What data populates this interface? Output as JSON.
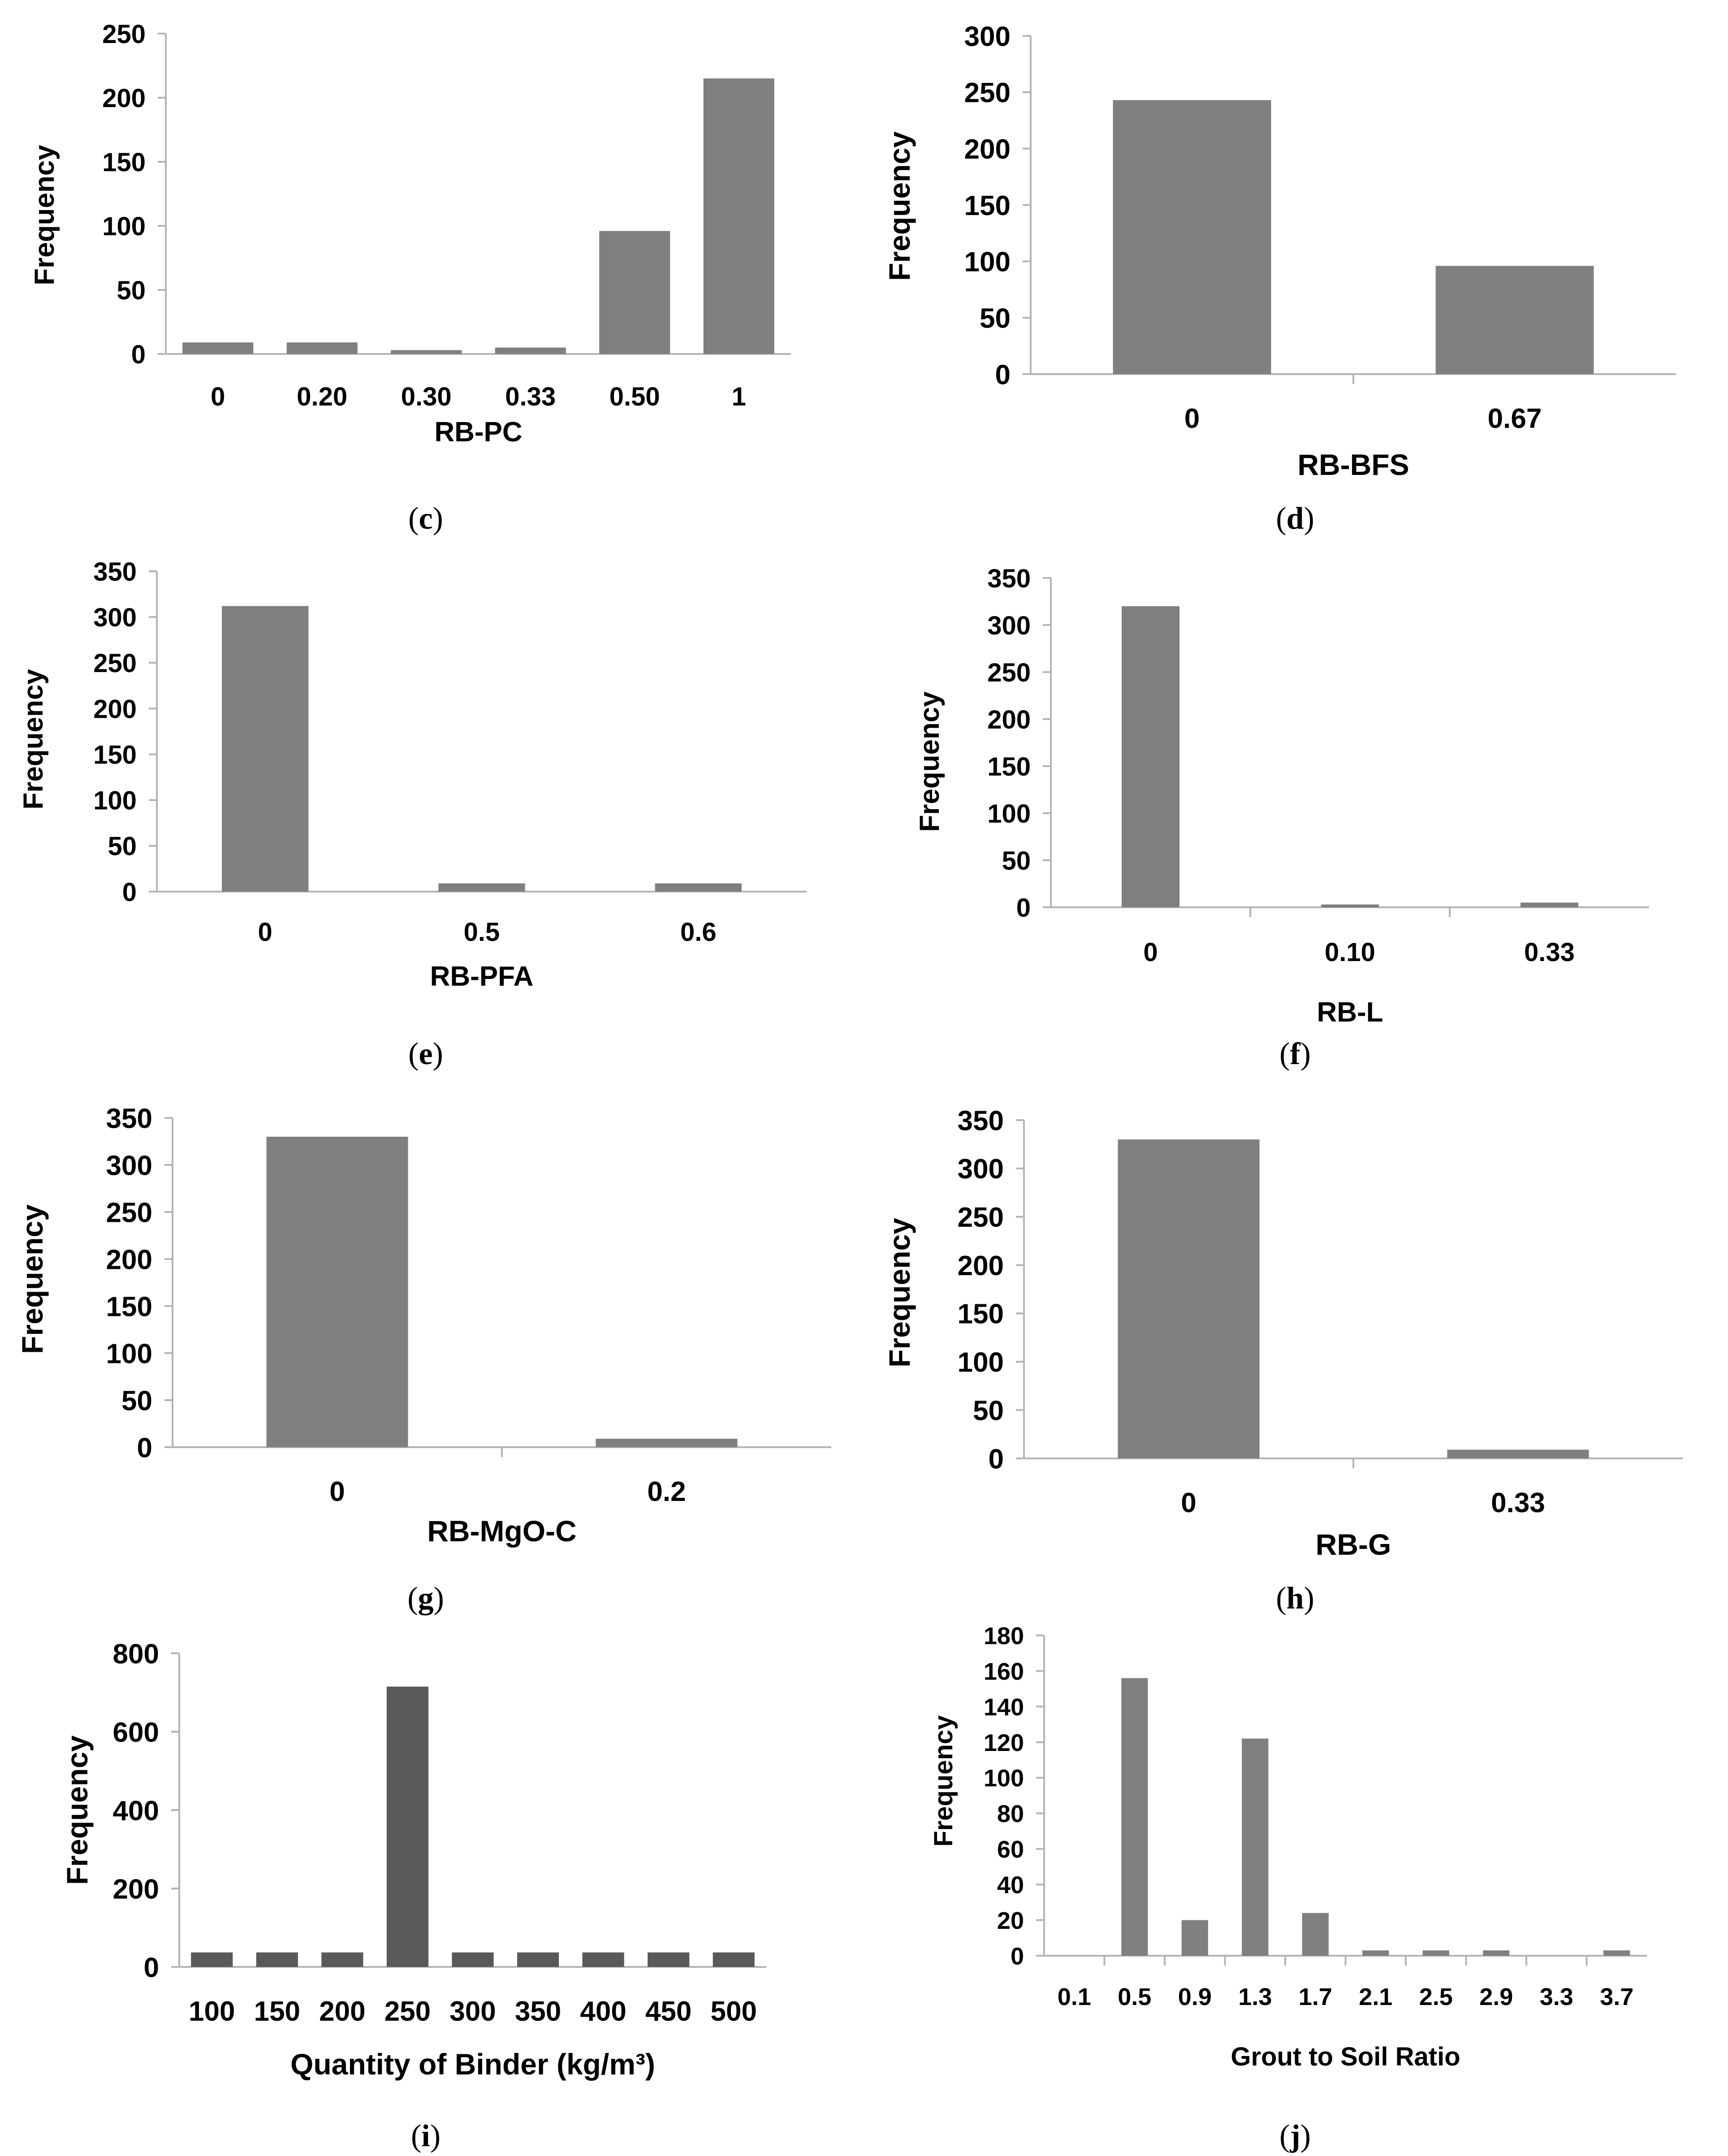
{
  "chart_data": [
    {
      "id": "c",
      "type": "bar",
      "caption": "c",
      "xlabel": "RB-PC",
      "ylabel": "Frequency",
      "categories": [
        "0",
        "0.20",
        "0.30",
        "0.33",
        "0.50",
        "1"
      ],
      "values": [
        9,
        9,
        3,
        5,
        96,
        215
      ],
      "ylim": [
        0,
        250
      ],
      "yticks": [
        0,
        50,
        100,
        150,
        200,
        250
      ],
      "color": "#7f7f7f"
    },
    {
      "id": "d",
      "type": "bar",
      "caption": "d",
      "xlabel": "RB-BFS",
      "ylabel": "Frequency",
      "categories": [
        "0",
        "0.67"
      ],
      "values": [
        243,
        96
      ],
      "ylim": [
        0,
        300
      ],
      "yticks": [
        0,
        50,
        100,
        150,
        200,
        250,
        300
      ],
      "color": "#7f7f7f"
    },
    {
      "id": "e",
      "type": "bar",
      "caption": "e",
      "xlabel": "RB-PFA",
      "ylabel": "Frequency",
      "categories": [
        "0",
        "0.5",
        "0.6"
      ],
      "values": [
        312,
        9,
        9
      ],
      "ylim": [
        0,
        350
      ],
      "yticks": [
        0,
        50,
        100,
        150,
        200,
        250,
        300,
        350
      ],
      "color": "#7f7f7f"
    },
    {
      "id": "f",
      "type": "bar",
      "caption": "f",
      "xlabel": "RB-L",
      "ylabel": "Frequency",
      "categories": [
        "0",
        "0.10",
        "0.33"
      ],
      "values": [
        320,
        3,
        5
      ],
      "ylim": [
        0,
        350
      ],
      "yticks": [
        0,
        50,
        100,
        150,
        200,
        250,
        300,
        350
      ],
      "color": "#7f7f7f"
    },
    {
      "id": "g",
      "type": "bar",
      "caption": "g",
      "xlabel": "RB-MgO-C",
      "ylabel": "Frequency",
      "categories": [
        "0",
        "0.2"
      ],
      "values": [
        330,
        9
      ],
      "ylim": [
        0,
        350
      ],
      "yticks": [
        0,
        50,
        100,
        150,
        200,
        250,
        300,
        350
      ],
      "color": "#7f7f7f"
    },
    {
      "id": "h",
      "type": "bar",
      "caption": "h",
      "xlabel": "RB-G",
      "ylabel": "Frequency",
      "categories": [
        "0",
        "0.33"
      ],
      "values": [
        330,
        9
      ],
      "ylim": [
        0,
        350
      ],
      "yticks": [
        0,
        50,
        100,
        150,
        200,
        250,
        300,
        350
      ],
      "color": "#7f7f7f"
    },
    {
      "id": "i",
      "type": "bar",
      "caption": "i",
      "xlabel": "Quantity of Binder  (kg/m³)",
      "ylabel": "Frequency",
      "categories": [
        "100",
        "150",
        "200",
        "250",
        "300",
        "350",
        "400",
        "450",
        "500"
      ],
      "values": [
        37,
        37,
        37,
        715,
        37,
        37,
        37,
        37,
        37
      ],
      "ylim": [
        0,
        800
      ],
      "yticks": [
        0,
        200,
        400,
        600,
        800
      ],
      "color": "#595959"
    },
    {
      "id": "j",
      "type": "bar",
      "caption": "j",
      "xlabel": "Grout to Soil Ratio",
      "ylabel": "Frequency",
      "categories": [
        "0.1",
        "0.5",
        "0.9",
        "1.3",
        "1.7",
        "2.1",
        "2.5",
        "2.9",
        "3.3",
        "3.7"
      ],
      "values": [
        0,
        156,
        20,
        122,
        24,
        3,
        3,
        3,
        0,
        3
      ],
      "ylim": [
        0,
        180
      ],
      "yticks": [
        0,
        20,
        40,
        60,
        80,
        100,
        120,
        140,
        160,
        180
      ],
      "color": "#7f7f7f"
    }
  ]
}
